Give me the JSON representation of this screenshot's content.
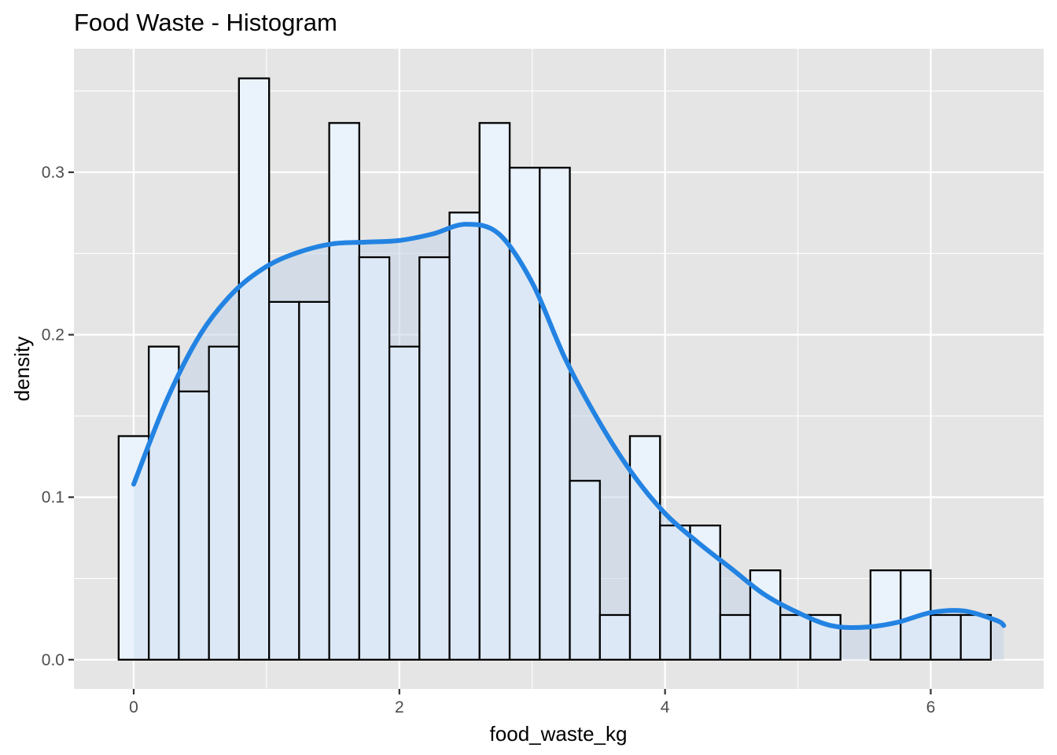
{
  "chart_data": {
    "type": "histogram",
    "title": "Food Waste - Histogram",
    "xlabel": "food_waste_kg",
    "ylabel": "density",
    "xlim": [
      -0.45,
      6.85
    ],
    "ylim": [
      -0.018,
      0.376
    ],
    "x_ticks": [
      0,
      2,
      4,
      6
    ],
    "x_tick_labels": [
      "0",
      "2",
      "4",
      "6"
    ],
    "y_ticks": [
      0.0,
      0.1,
      0.2,
      0.3
    ],
    "y_tick_labels": [
      "0.0",
      "0.1",
      "0.2",
      "0.3"
    ],
    "grid": true,
    "legend": "none",
    "bins": {
      "start": -0.113,
      "width": 0.2264,
      "densities": [
        0.1376,
        0.1927,
        0.1651,
        0.1927,
        0.3578,
        0.2202,
        0.2202,
        0.3303,
        0.2477,
        0.1927,
        0.2477,
        0.2752,
        0.3303,
        0.3028,
        0.3028,
        0.1101,
        0.0275,
        0.1376,
        0.0826,
        0.0826,
        0.0275,
        0.055,
        0.0275,
        0.0275,
        0.0,
        0.055,
        0.055,
        0.0275,
        0.0275
      ]
    },
    "density_curve": {
      "x": [
        0.0,
        0.25,
        0.5,
        0.75,
        1.0,
        1.25,
        1.5,
        1.75,
        2.0,
        2.25,
        2.5,
        2.75,
        3.0,
        3.25,
        3.5,
        3.75,
        4.0,
        4.25,
        4.5,
        4.75,
        5.0,
        5.25,
        5.5,
        5.75,
        6.0,
        6.25,
        6.5,
        6.55
      ],
      "y": [
        0.108,
        0.16,
        0.2,
        0.226,
        0.242,
        0.251,
        0.256,
        0.257,
        0.258,
        0.262,
        0.268,
        0.262,
        0.232,
        0.185,
        0.147,
        0.115,
        0.09,
        0.072,
        0.056,
        0.04,
        0.029,
        0.021,
        0.02,
        0.023,
        0.029,
        0.03,
        0.024,
        0.021
      ],
      "color": "#2383e2",
      "fill": "#c4d6e7"
    },
    "bar_outline": "#000000",
    "bar_fill": "#ffffff",
    "overlay_fill": "#d8e8f7",
    "panel_background": "#e5e5e5",
    "grid_color": "#ffffff"
  }
}
